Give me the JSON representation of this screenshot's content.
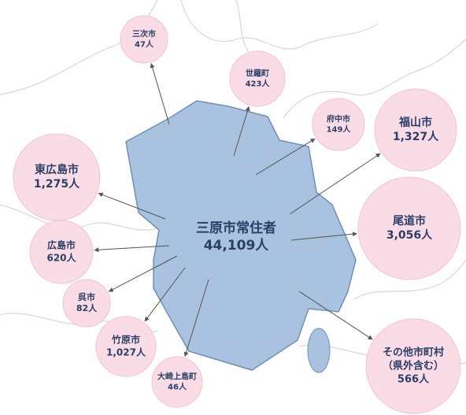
{
  "center": {
    "name": "三原市常住者",
    "count": "44,109人"
  },
  "destinations": [
    {
      "lines": [
        "三次市"
      ],
      "count": "47人"
    },
    {
      "lines": [
        "世羅町"
      ],
      "count": "423人"
    },
    {
      "lines": [
        "府中市"
      ],
      "count": "149人"
    },
    {
      "lines": [
        "福山市"
      ],
      "count": "1,327人"
    },
    {
      "lines": [
        "東広島市"
      ],
      "count": "1,275人"
    },
    {
      "lines": [
        "尾道市"
      ],
      "count": "3,056人"
    },
    {
      "lines": [
        "広島市"
      ],
      "count": "620人"
    },
    {
      "lines": [
        "呉市"
      ],
      "count": "82人"
    },
    {
      "lines": [
        "竹原市"
      ],
      "count": "1,027人"
    },
    {
      "lines": [
        "大崎上島町"
      ],
      "count": "46人"
    },
    {
      "lines": [
        "その他市町村",
        "（県外含む）"
      ],
      "count": "566人"
    }
  ]
}
